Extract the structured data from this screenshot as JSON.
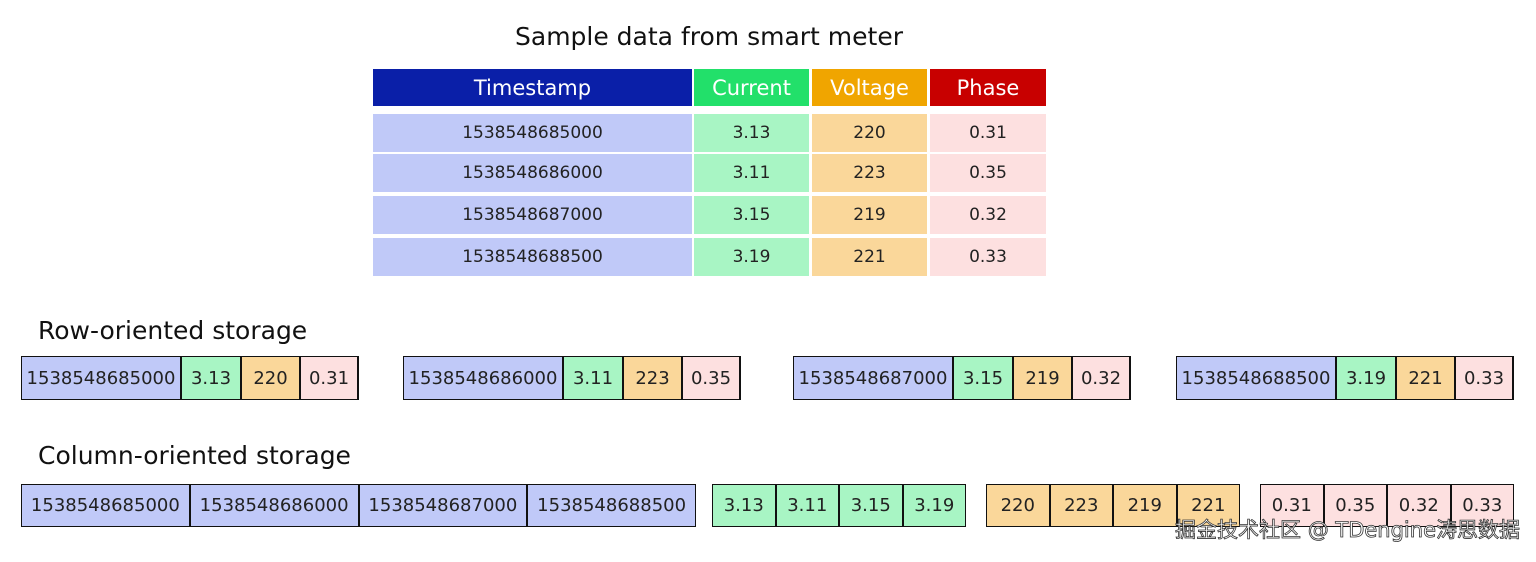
{
  "title": "Sample data from smart meter",
  "table": {
    "headers": [
      "Timestamp",
      "Current",
      "Voltage",
      "Phase"
    ],
    "rows": [
      [
        1538548685000,
        3.13,
        220,
        0.31
      ],
      [
        1538548686000,
        3.11,
        223,
        0.35
      ],
      [
        1538548687000,
        3.15,
        219,
        0.32
      ],
      [
        1538548688500,
        3.19,
        221,
        0.33
      ]
    ]
  },
  "row_storage": {
    "title": "Row-oriented storage"
  },
  "column_storage": {
    "title": "Column-oriented storage"
  },
  "watermark": "掘金技术社区 @ TDengine涛思数据"
}
